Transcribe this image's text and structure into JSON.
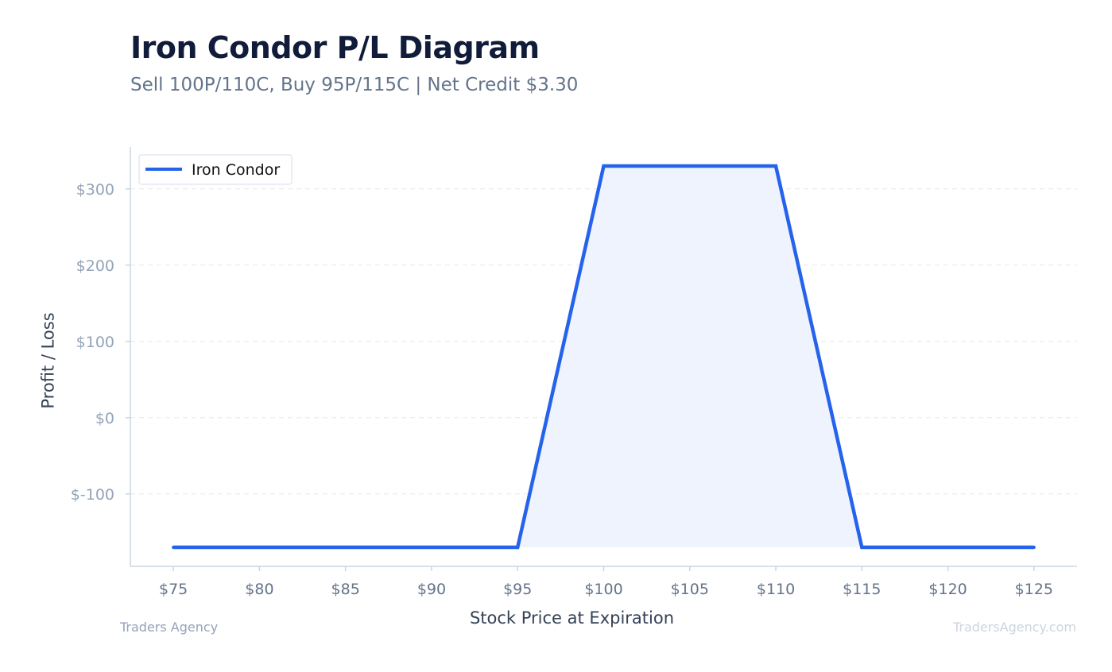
{
  "header": {
    "title": "Iron Condor P/L Diagram",
    "subtitle": "Sell 100P/110C, Buy 95P/115C | Net Credit $3.30"
  },
  "footer": {
    "left": "Traders Agency",
    "right": "TradersAgency.com"
  },
  "colors": {
    "line": "#2563eb",
    "fill": "#eef3fd",
    "grid": "#e5e7eb",
    "axis": "#cbd5e1"
  },
  "chart_data": {
    "type": "line",
    "title": "Iron Condor P/L Diagram",
    "subtitle": "Sell 100P/110C, Buy 95P/115C | Net Credit $3.30",
    "xlabel": "Stock Price at Expiration",
    "ylabel": "Profit / Loss",
    "xlim": [
      72.5,
      127.5
    ],
    "ylim": [
      -195,
      355
    ],
    "x_ticks": [
      75,
      80,
      85,
      90,
      95,
      100,
      105,
      110,
      115,
      120,
      125
    ],
    "x_tick_labels": [
      "$75",
      "$80",
      "$85",
      "$90",
      "$95",
      "$100",
      "$105",
      "$110",
      "$115",
      "$120",
      "$125"
    ],
    "y_ticks": [
      -100,
      0,
      100,
      200,
      300
    ],
    "y_tick_labels": [
      "$-100",
      "$0",
      "$100",
      "$200",
      "$300"
    ],
    "grid": true,
    "legend_position": "top-left",
    "series": [
      {
        "name": "Iron Condor",
        "x": [
          75,
          95,
          100,
          110,
          115,
          125
        ],
        "y": [
          -170,
          -170,
          330,
          330,
          -170,
          -170
        ]
      }
    ]
  }
}
